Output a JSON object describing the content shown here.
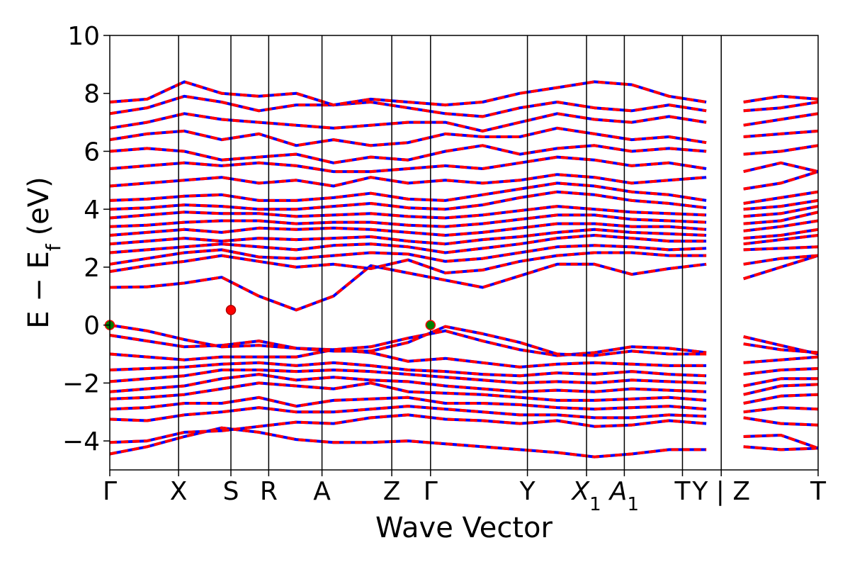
{
  "chart_data": {
    "type": "line",
    "title": "",
    "xlabel": "Wave Vector",
    "ylabel": "E − E",
    "ylabel_sub": "f",
    "ylabel_unit": "(eV)",
    "ylim": [
      -5,
      10
    ],
    "yticks": [
      -4,
      -2,
      0,
      2,
      4,
      6,
      8,
      10
    ],
    "ytick_labels": [
      "−4",
      "−2",
      "0",
      "2",
      "4",
      "6",
      "8",
      "10"
    ],
    "grid": false,
    "legend": "none",
    "kpath_labels": [
      {
        "label": "Γ",
        "sub": "",
        "italic": false
      },
      {
        "label": "X",
        "sub": "",
        "italic": false
      },
      {
        "label": "S",
        "sub": "",
        "italic": false
      },
      {
        "label": "R",
        "sub": "",
        "italic": false
      },
      {
        "label": "A",
        "sub": "",
        "italic": false
      },
      {
        "label": "Z",
        "sub": "",
        "italic": false
      },
      {
        "label": "Γ",
        "sub": "",
        "italic": false
      },
      {
        "label": "Y",
        "sub": "",
        "italic": false
      },
      {
        "label": "X",
        "sub": "1",
        "italic": true
      },
      {
        "label": "A",
        "sub": "1",
        "italic": true
      },
      {
        "label": "T",
        "sub": "",
        "italic": false
      },
      {
        "label": "Y | Z",
        "sub": "",
        "italic": false
      },
      {
        "label": "T",
        "sub": "",
        "italic": false
      }
    ],
    "kpath_positions": [
      0,
      0.71,
      1.25,
      1.64,
      2.19,
      2.91,
      3.31,
      4.31,
      4.92,
      5.31,
      5.91,
      6.31,
      7.31
    ],
    "path_break_after": 6.31,
    "band_colors": {
      "spin_up": "#ff0000",
      "spin_down": "#0000ff"
    },
    "vbm_color": "#008000",
    "cbm_color": "#ff0000",
    "vbm_points": [
      {
        "k": 0,
        "E": 0.0
      },
      {
        "k": 3.31,
        "E": 0.0
      }
    ],
    "cbm_points": [
      {
        "k": 1.25,
        "E": 0.52
      }
    ],
    "series": [
      {
        "values": [
          -4.45,
          -4.2,
          -3.85,
          -3.55,
          -3.7,
          -3.95,
          -4.05,
          -4.05,
          -4.0,
          -4.1,
          -4.2,
          -4.3,
          -4.4,
          -4.55,
          -4.45,
          -4.3,
          -4.3,
          -4.2,
          -4.3,
          -4.25
        ]
      },
      {
        "values": [
          -4.05,
          -4.0,
          -3.7,
          -3.65,
          -3.5,
          -3.35,
          -3.4,
          -3.2,
          -3.1,
          -3.25,
          -3.3,
          -3.4,
          -3.3,
          -3.5,
          -3.45,
          -3.3,
          -3.4,
          -3.85,
          -3.8,
          -4.25
        ]
      },
      {
        "values": [
          -3.25,
          -3.3,
          -3.1,
          -3.0,
          -2.85,
          -3.0,
          -3.0,
          -2.9,
          -2.8,
          -2.9,
          -3.0,
          -3.1,
          -3.1,
          -3.2,
          -3.2,
          -3.1,
          -3.15,
          -3.2,
          -3.4,
          -3.45
        ]
      },
      {
        "values": [
          -2.9,
          -2.85,
          -2.7,
          -2.7,
          -2.5,
          -2.8,
          -2.6,
          -2.55,
          -2.5,
          -2.7,
          -2.7,
          -2.75,
          -2.85,
          -2.9,
          -2.85,
          -2.8,
          -2.9,
          -3.0,
          -2.85,
          -2.9
        ]
      },
      {
        "values": [
          -2.55,
          -2.5,
          -2.4,
          -2.2,
          -2.0,
          -2.1,
          -2.2,
          -2.0,
          -2.3,
          -2.35,
          -2.4,
          -2.5,
          -2.6,
          -2.6,
          -2.55,
          -2.5,
          -2.6,
          -2.7,
          -2.45,
          -2.4
        ]
      },
      {
        "values": [
          -2.3,
          -2.2,
          -2.1,
          -1.85,
          -1.7,
          -1.9,
          -1.8,
          -1.9,
          -1.95,
          -2.1,
          -2.2,
          -2.3,
          -2.25,
          -2.3,
          -2.2,
          -2.25,
          -2.3,
          -2.4,
          -2.1,
          -2.05
        ]
      },
      {
        "values": [
          -1.95,
          -1.85,
          -1.75,
          -1.55,
          -1.55,
          -1.6,
          -1.55,
          -1.6,
          -1.7,
          -1.8,
          -1.9,
          -2.0,
          -1.95,
          -2.0,
          -1.9,
          -1.95,
          -2.0,
          -2.1,
          -1.85,
          -1.85
        ]
      },
      {
        "values": [
          -1.55,
          -1.5,
          -1.45,
          -1.35,
          -1.3,
          -1.4,
          -1.3,
          -1.4,
          -1.55,
          -1.6,
          -1.7,
          -1.75,
          -1.65,
          -1.7,
          -1.6,
          -1.7,
          -1.75,
          -1.7,
          -1.55,
          -1.5
        ]
      },
      {
        "values": [
          -1.0,
          -1.1,
          -1.2,
          -1.1,
          -1.1,
          -1.1,
          -0.85,
          -0.95,
          -1.25,
          -1.15,
          -1.3,
          -1.45,
          -1.35,
          -1.3,
          -1.35,
          -1.4,
          -1.4,
          -1.3,
          -1.2,
          -1.1
        ]
      },
      {
        "values": [
          -0.35,
          -0.55,
          -0.75,
          -0.7,
          -0.55,
          -0.8,
          -0.85,
          -0.75,
          -0.45,
          -0.2,
          -0.55,
          -0.85,
          -1.05,
          -0.95,
          -0.75,
          -0.8,
          -0.95,
          -0.4,
          -0.7,
          -1.0
        ]
      },
      {
        "values": [
          0.0,
          -0.2,
          -0.5,
          -0.75,
          -0.7,
          -0.8,
          -0.9,
          -0.9,
          -0.6,
          -0.05,
          -0.3,
          -0.6,
          -1.0,
          -1.05,
          -0.9,
          -1.0,
          -1.0,
          -0.65,
          -0.85,
          -0.95
        ]
      },
      {
        "values": [
          1.3,
          1.32,
          1.45,
          1.65,
          1.0,
          0.52,
          1.0,
          2.05,
          1.8,
          1.55,
          1.3,
          1.7,
          2.1,
          2.1,
          1.75,
          1.95,
          2.1,
          1.6,
          2.0,
          2.4
        ]
      },
      {
        "values": [
          1.85,
          2.05,
          2.2,
          2.4,
          2.2,
          2.0,
          2.1,
          1.95,
          2.25,
          1.8,
          1.9,
          2.2,
          2.4,
          2.5,
          2.5,
          2.4,
          2.4,
          2.1,
          2.3,
          2.4
        ]
      },
      {
        "values": [
          2.1,
          2.3,
          2.5,
          2.6,
          2.35,
          2.3,
          2.4,
          2.5,
          2.45,
          2.2,
          2.3,
          2.5,
          2.7,
          2.75,
          2.7,
          2.6,
          2.65,
          2.6,
          2.65,
          2.7
        ]
      },
      {
        "values": [
          2.5,
          2.6,
          2.7,
          2.8,
          2.7,
          2.6,
          2.75,
          2.8,
          2.7,
          2.5,
          2.65,
          2.8,
          3.0,
          3.1,
          3.0,
          2.9,
          2.9,
          2.8,
          2.95,
          3.1
        ]
      },
      {
        "values": [
          2.8,
          2.9,
          3.0,
          2.9,
          3.0,
          2.95,
          3.0,
          3.05,
          2.9,
          2.8,
          2.95,
          3.05,
          3.2,
          3.3,
          3.2,
          3.15,
          3.1,
          3.0,
          3.1,
          3.3
        ]
      },
      {
        "values": [
          3.1,
          3.2,
          3.3,
          3.2,
          3.35,
          3.3,
          3.35,
          3.3,
          3.2,
          3.1,
          3.2,
          3.35,
          3.5,
          3.5,
          3.4,
          3.4,
          3.3,
          3.25,
          3.4,
          3.6
        ]
      },
      {
        "values": [
          3.4,
          3.45,
          3.55,
          3.6,
          3.6,
          3.5,
          3.55,
          3.55,
          3.45,
          3.4,
          3.5,
          3.65,
          3.8,
          3.8,
          3.65,
          3.6,
          3.55,
          3.5,
          3.6,
          3.9
        ]
      },
      {
        "values": [
          3.7,
          3.8,
          3.9,
          3.85,
          3.85,
          3.75,
          3.8,
          3.85,
          3.75,
          3.7,
          3.8,
          3.95,
          4.1,
          4.0,
          3.9,
          3.85,
          3.8,
          3.75,
          3.85,
          4.1
        ]
      },
      {
        "values": [
          4.0,
          4.05,
          4.15,
          4.1,
          4.0,
          4.0,
          4.1,
          4.2,
          4.05,
          4.0,
          4.15,
          4.4,
          4.6,
          4.5,
          4.3,
          4.2,
          4.05,
          4.0,
          4.1,
          4.3
        ]
      },
      {
        "values": [
          4.3,
          4.35,
          4.45,
          4.5,
          4.3,
          4.3,
          4.4,
          4.55,
          4.35,
          4.3,
          4.5,
          4.7,
          4.9,
          4.8,
          4.6,
          4.5,
          4.3,
          4.2,
          4.4,
          4.6
        ]
      },
      {
        "values": [
          4.8,
          4.9,
          5.0,
          5.1,
          4.9,
          5.0,
          4.8,
          5.1,
          4.9,
          5.0,
          4.9,
          5.0,
          5.2,
          5.1,
          4.9,
          5.0,
          5.1,
          4.7,
          4.9,
          5.3
        ]
      },
      {
        "values": [
          5.4,
          5.5,
          5.6,
          5.5,
          5.6,
          5.5,
          5.3,
          5.3,
          5.4,
          5.5,
          5.4,
          5.6,
          5.8,
          5.7,
          5.5,
          5.6,
          5.4,
          5.3,
          5.6,
          5.3
        ]
      },
      {
        "values": [
          6.0,
          6.1,
          6.0,
          5.7,
          5.8,
          5.9,
          5.6,
          5.8,
          5.7,
          6.0,
          6.2,
          5.9,
          6.1,
          6.2,
          6.0,
          6.1,
          6.0,
          5.9,
          6.0,
          6.2
        ]
      },
      {
        "values": [
          6.4,
          6.6,
          6.7,
          6.4,
          6.6,
          6.2,
          6.4,
          6.2,
          6.3,
          6.6,
          6.5,
          6.5,
          6.8,
          6.6,
          6.4,
          6.5,
          6.3,
          6.5,
          6.6,
          6.7
        ]
      },
      {
        "values": [
          6.8,
          7.0,
          7.3,
          7.1,
          7.0,
          6.9,
          6.8,
          6.9,
          7.0,
          7.0,
          6.7,
          7.0,
          7.3,
          7.1,
          7.0,
          7.2,
          7.0,
          6.9,
          7.1,
          7.3
        ]
      },
      {
        "values": [
          7.3,
          7.5,
          7.9,
          7.7,
          7.4,
          7.6,
          7.6,
          7.7,
          7.5,
          7.3,
          7.2,
          7.5,
          7.7,
          7.5,
          7.4,
          7.6,
          7.4,
          7.4,
          7.5,
          7.7
        ]
      },
      {
        "values": [
          7.7,
          7.8,
          8.4,
          8.0,
          7.9,
          8.0,
          7.6,
          7.8,
          7.7,
          7.6,
          7.7,
          8.0,
          8.2,
          8.4,
          8.3,
          7.9,
          7.7,
          7.7,
          7.9,
          7.8
        ]
      }
    ]
  }
}
